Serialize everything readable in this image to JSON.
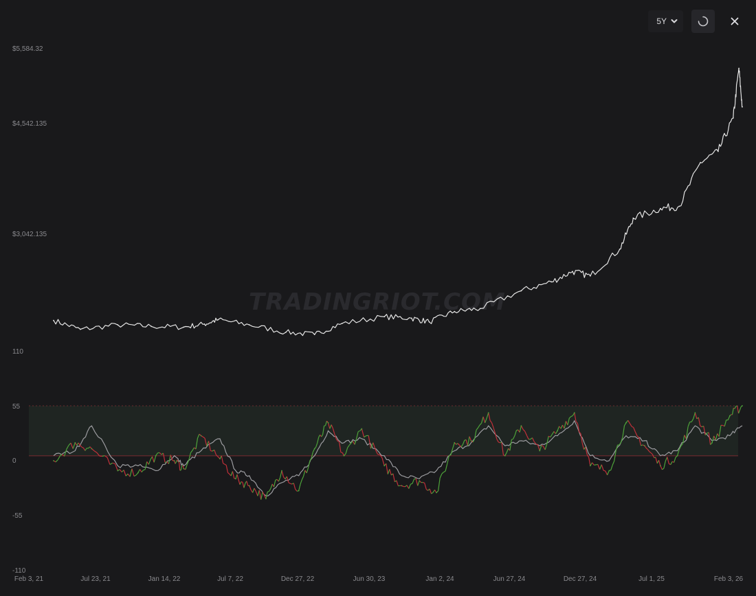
{
  "toolbar": {
    "range_value": "5Y",
    "range_icon": "chevron-down-icon",
    "refresh_icon": "spinner-icon",
    "close_icon": "close-icon"
  },
  "watermark": "TRADINGRIOT.COM",
  "colors": {
    "background": "#19191b",
    "price_line": "#e6e6e6",
    "oscillator_up": "#4ea33a",
    "oscillator_down": "#c2303a",
    "signal_line": "#9c9ca0",
    "band_fill": "#243028",
    "band_border": "#6a2a2e"
  },
  "chart_data": [
    {
      "type": "line",
      "panel": "price",
      "y_tick_labels": [
        "$5,584.32",
        "$4,542.135",
        "$3,042.135",
        "110"
      ],
      "x_tick_labels": [
        "Feb 3, 21",
        "Jul 23, 21",
        "Jan 14, 22",
        "Jul 7, 22",
        "Dec 27, 22",
        "Jun 30, 23",
        "Jan 2, 24",
        "Jun 27, 24",
        "Dec 27, 24",
        "Jul 1, 25",
        "Feb 3, 26"
      ],
      "x": [
        "2021-02-03",
        "2021-04-15",
        "2021-07-23",
        "2021-10-20",
        "2022-01-14",
        "2022-03-10",
        "2022-04-15",
        "2022-07-07",
        "2022-10-12",
        "2022-12-27",
        "2023-03-10",
        "2023-06-30",
        "2023-09-10",
        "2023-10-27",
        "2024-01-02",
        "2024-03-10",
        "2024-06-27",
        "2024-09-15",
        "2024-11-10",
        "2024-12-27",
        "2025-03-15",
        "2025-04-20",
        "2025-07-01",
        "2025-08-20",
        "2025-10-15",
        "2025-12-01",
        "2026-01-10",
        "2026-01-25",
        "2026-02-03"
      ],
      "series": [
        {
          "values": [
            1920,
            1800,
            1860,
            1840,
            1830,
            1870,
            1930,
            1860,
            1760,
            1730,
            1880,
            1970,
            1950,
            1900,
            2040,
            2080,
            2320,
            2440,
            2580,
            2520,
            2880,
            3300,
            3430,
            3460,
            4050,
            4200,
            4650,
            5320,
            4800
          ]
        }
      ]
    },
    {
      "type": "line",
      "panel": "oscillator",
      "y_tick_labels": [
        "55",
        "0",
        "-55",
        "-110"
      ],
      "band": [
        5,
        55
      ],
      "series_colors_by_sign": true,
      "x": [
        "2021-02-03",
        "2021-04-01",
        "2021-05-15",
        "2021-07-23",
        "2021-09-15",
        "2021-11-01",
        "2021-12-20",
        "2022-01-14",
        "2022-03-01",
        "2022-04-20",
        "2022-06-01",
        "2022-07-07",
        "2022-08-20",
        "2022-10-01",
        "2022-11-15",
        "2022-12-27",
        "2023-02-01",
        "2023-03-15",
        "2023-05-01",
        "2023-06-30",
        "2023-08-15",
        "2023-10-01",
        "2023-11-15",
        "2024-01-02",
        "2024-02-15",
        "2024-04-01",
        "2024-05-15",
        "2024-06-27",
        "2024-08-15",
        "2024-10-01",
        "2024-11-15",
        "2024-12-27",
        "2025-02-15",
        "2025-04-01",
        "2025-05-20",
        "2025-07-01",
        "2025-08-15",
        "2025-10-01",
        "2025-11-15",
        "2026-01-01",
        "2026-02-03"
      ],
      "series": [
        {
          "values": [
            0,
            18,
            12,
            -10,
            -12,
            5,
            0,
            -8,
            25,
            2,
            -18,
            -25,
            -38,
            -10,
            -30,
            12,
            38,
            5,
            32,
            -5,
            -25,
            -20,
            -32,
            18,
            20,
            48,
            5,
            35,
            10,
            30,
            48,
            -5,
            -10,
            38,
            15,
            -5,
            5,
            48,
            18,
            45,
            55
          ]
        },
        {
          "values": [
            5,
            10,
            35,
            -5,
            -5,
            -10,
            5,
            -5,
            10,
            22,
            -10,
            -15,
            -35,
            -22,
            -15,
            5,
            30,
            18,
            22,
            5,
            -15,
            -18,
            -10,
            10,
            18,
            35,
            15,
            20,
            15,
            25,
            40,
            5,
            0,
            25,
            20,
            5,
            10,
            35,
            20,
            25,
            35
          ]
        }
      ]
    }
  ]
}
